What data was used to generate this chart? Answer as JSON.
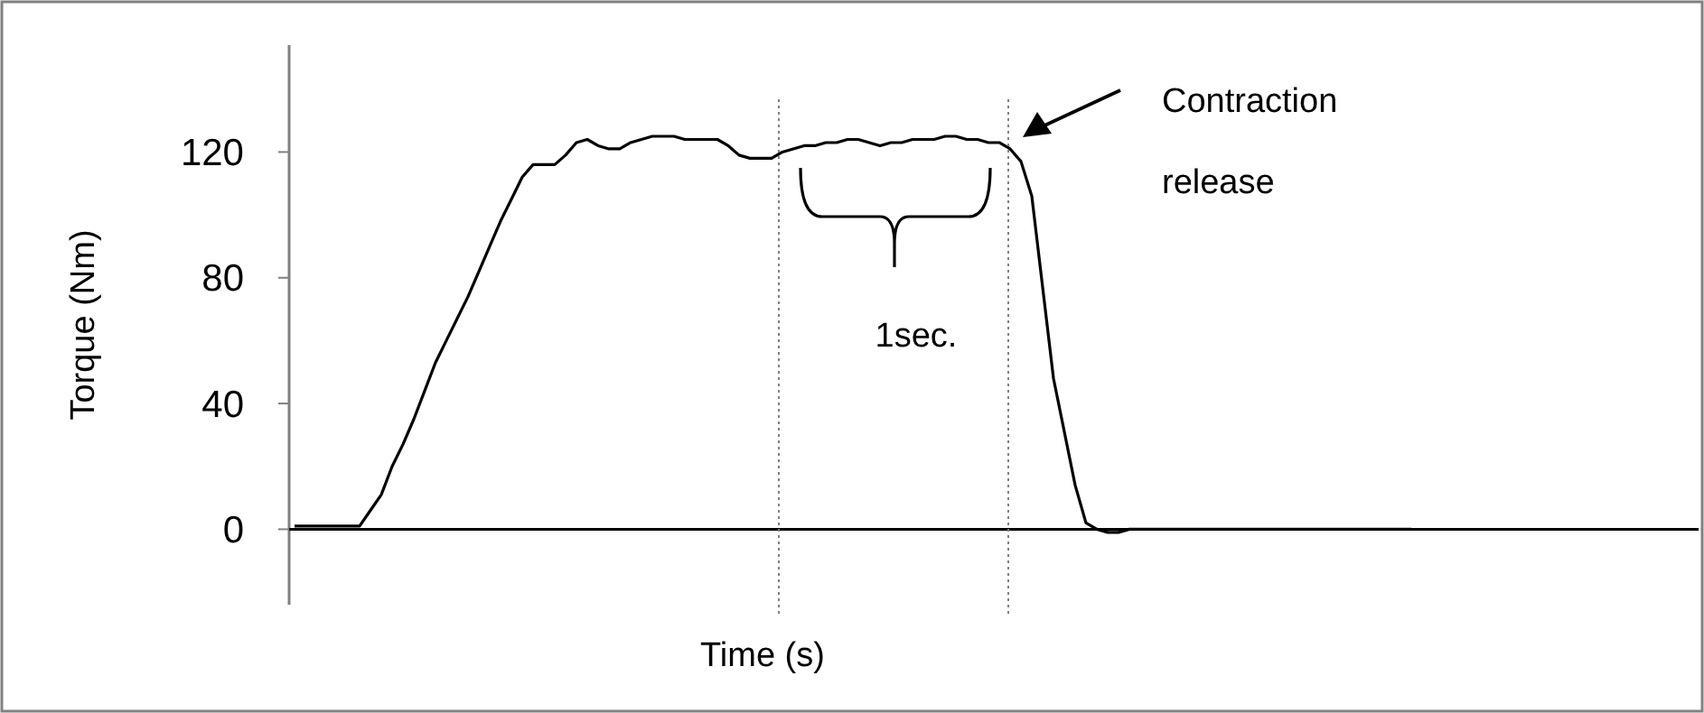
{
  "chart_data": {
    "type": "line",
    "xlabel": "Time (s)",
    "ylabel": "Torque (Nm)",
    "categories": [
      null,
      null,
      null,
      null,
      null,
      null,
      null,
      null,
      null,
      null,
      null,
      null,
      null,
      null,
      null,
      null,
      null,
      null,
      null,
      null,
      null,
      null,
      null,
      null,
      null,
      null,
      null,
      null,
      null,
      null,
      null,
      null,
      null,
      null,
      null,
      null,
      null,
      null,
      null,
      null,
      null,
      null,
      null,
      null,
      null,
      null,
      null,
      null,
      null,
      null,
      null,
      null,
      null,
      null,
      null,
      null,
      null,
      null,
      null,
      null,
      null,
      null,
      null,
      null,
      null,
      null,
      null,
      null,
      null,
      null,
      null,
      null,
      null,
      null,
      null,
      null,
      null,
      null,
      null,
      null,
      null,
      null,
      null,
      null,
      null,
      null,
      null,
      null,
      null,
      null,
      null,
      null,
      null,
      null,
      null,
      null,
      null,
      null,
      null,
      null,
      null,
      null,
      null,
      null,
      null,
      null,
      null,
      null,
      null,
      null,
      null,
      null,
      null,
      null,
      null,
      null,
      null,
      null,
      null,
      null,
      null,
      null,
      null,
      null,
      null,
      null,
      null,
      null,
      null,
      null
    ],
    "series": [
      {
        "color": "#000000",
        "values": [
          1,
          1,
          1,
          1,
          1,
          1,
          1,
          6,
          11,
          20,
          27,
          35,
          44,
          53,
          60,
          67,
          74,
          82,
          90,
          98,
          105,
          112,
          116,
          116,
          116,
          119,
          123,
          124,
          122,
          121,
          121,
          123,
          124,
          125,
          125,
          125,
          124,
          124,
          124,
          124,
          122,
          119,
          118,
          118,
          118,
          120,
          121,
          122,
          122,
          123,
          123,
          124,
          124,
          123,
          122,
          123,
          123,
          124,
          124,
          124,
          125,
          125,
          124,
          124,
          123,
          123,
          121,
          117,
          106,
          77,
          48,
          31,
          14,
          2,
          0,
          -1,
          -1,
          0,
          0,
          0,
          0,
          0,
          0,
          0,
          0,
          0,
          0,
          0,
          0,
          0,
          0,
          0,
          0,
          0,
          0,
          0,
          0,
          0,
          0,
          0,
          0,
          0,
          0,
          0,
          null,
          null,
          null,
          null,
          null,
          null,
          null,
          null,
          null,
          null,
          null,
          null,
          null,
          null,
          null,
          null,
          null,
          null,
          null,
          null,
          null,
          null,
          null,
          null,
          null,
          null
        ]
      }
    ],
    "ylim": [
      -24,
      154
    ],
    "yticks": [
      0,
      40,
      80,
      120
    ],
    "grid": false,
    "marker": "none",
    "line_style": "solid",
    "ref_lines": [
      {
        "axis": "y",
        "value": 0,
        "color": "#000000",
        "line_style": "solid"
      }
    ],
    "annotations": [
      "Contraction release",
      "1sec."
    ]
  }
}
